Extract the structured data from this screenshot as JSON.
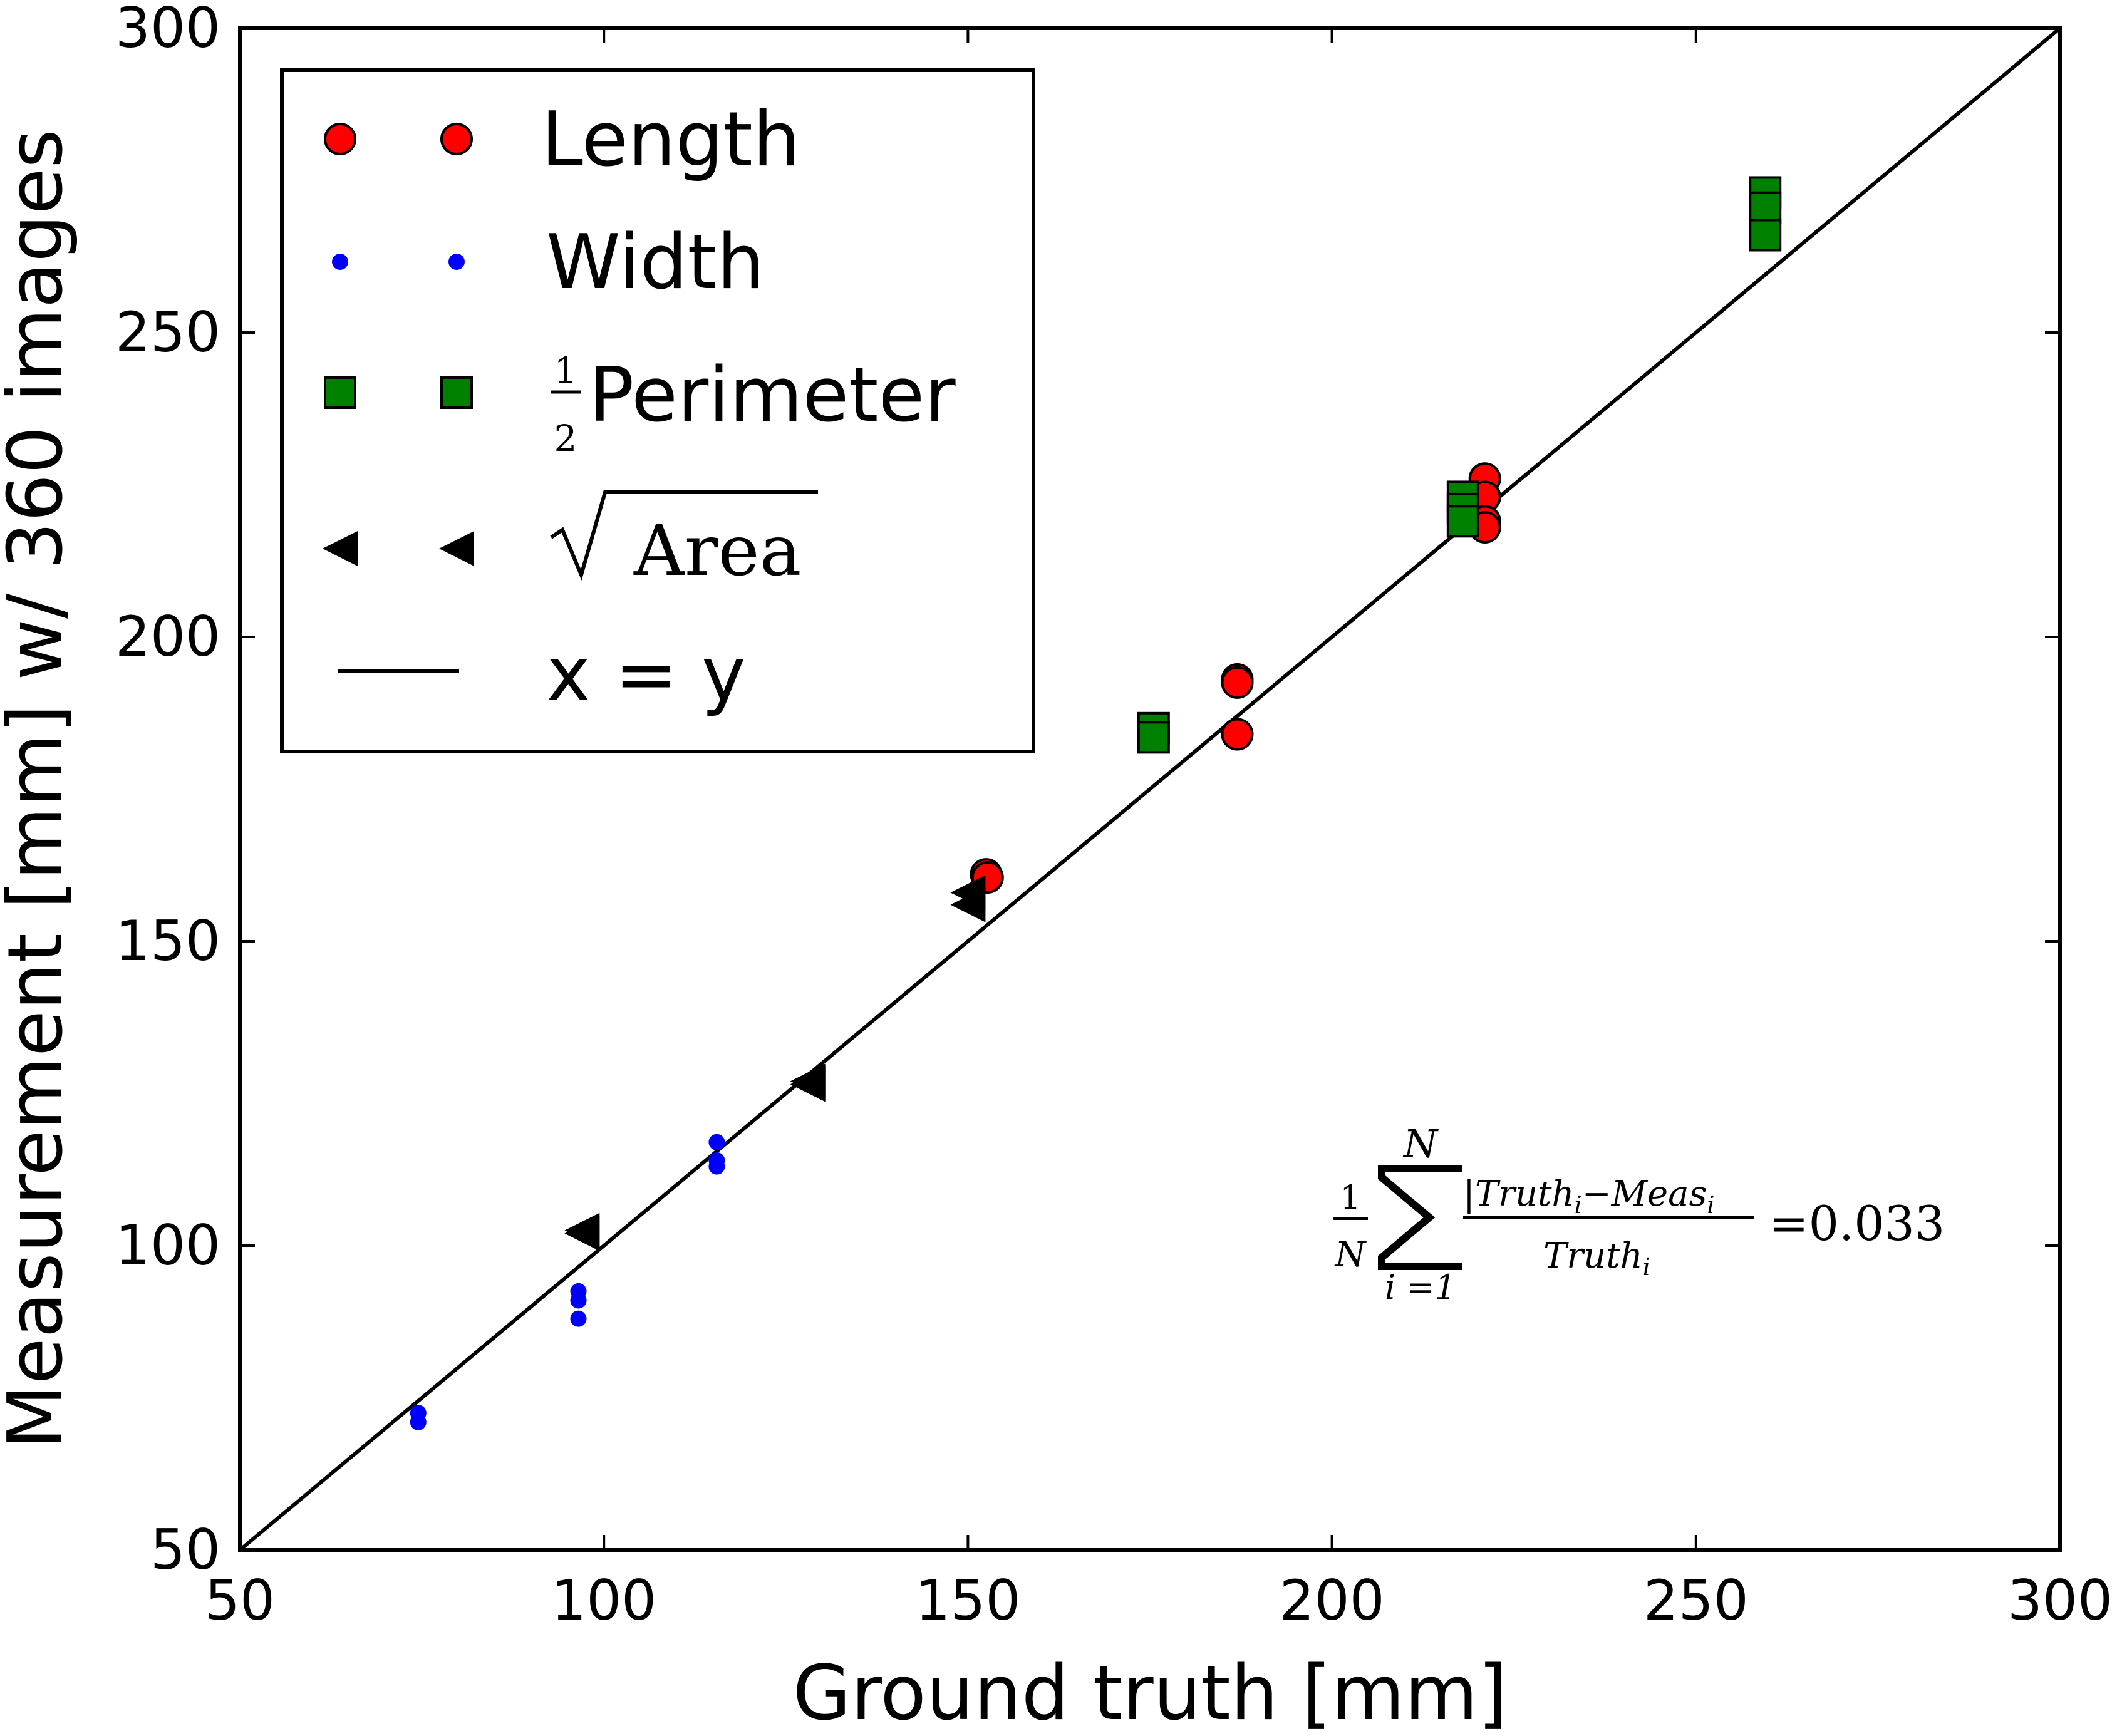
{
  "chart_data": {
    "type": "scatter",
    "title": "",
    "xlabel": "Ground truth [mm]",
    "ylabel": "Measurement [mm] w/ 360 images",
    "xlim": [
      50,
      300
    ],
    "ylim": [
      50,
      300
    ],
    "xticks": [
      50,
      100,
      150,
      200,
      250,
      300
    ],
    "yticks": [
      50,
      100,
      150,
      200,
      250,
      300
    ],
    "grid": false,
    "legend_position": "top-left",
    "series": [
      {
        "name": "Length",
        "marker": "circle",
        "color": "#ff0000",
        "points": [
          {
            "x": 152.5,
            "y": 161
          },
          {
            "x": 152.7,
            "y": 160.5
          },
          {
            "x": 187,
            "y": 193
          },
          {
            "x": 187,
            "y": 192.5
          },
          {
            "x": 187,
            "y": 184
          },
          {
            "x": 221,
            "y": 226
          },
          {
            "x": 221,
            "y": 223
          },
          {
            "x": 221,
            "y": 219
          },
          {
            "x": 221,
            "y": 218
          }
        ]
      },
      {
        "name": "Width",
        "marker": "dot",
        "color": "#0000ff",
        "points": [
          {
            "x": 74.5,
            "y": 72.5
          },
          {
            "x": 74.5,
            "y": 71
          },
          {
            "x": 96.5,
            "y": 92.5
          },
          {
            "x": 96.5,
            "y": 91
          },
          {
            "x": 96.5,
            "y": 88
          },
          {
            "x": 115.5,
            "y": 117
          },
          {
            "x": 115.5,
            "y": 114
          },
          {
            "x": 115.5,
            "y": 113
          }
        ]
      },
      {
        "name": "½Perimeter",
        "marker": "square",
        "color": "#008000",
        "points": [
          {
            "x": 175.5,
            "y": 185
          },
          {
            "x": 175.5,
            "y": 183.5
          },
          {
            "x": 218,
            "y": 223
          },
          {
            "x": 218,
            "y": 221
          },
          {
            "x": 218,
            "y": 219
          },
          {
            "x": 259.5,
            "y": 273
          },
          {
            "x": 259.5,
            "y": 270.5
          },
          {
            "x": 259.5,
            "y": 266
          }
        ]
      },
      {
        "name": "√Area",
        "marker": "triangle-left",
        "color": "#000000",
        "points": [
          {
            "x": 97,
            "y": 102.5
          },
          {
            "x": 97,
            "y": 102
          },
          {
            "x": 128,
            "y": 127
          },
          {
            "x": 128,
            "y": 126.5
          },
          {
            "x": 150,
            "y": 158
          },
          {
            "x": 150,
            "y": 156
          }
        ]
      },
      {
        "name": "x = y",
        "marker": "line",
        "color": "#000000",
        "points": [
          {
            "x": 50,
            "y": 50
          },
          {
            "x": 300,
            "y": 300
          }
        ]
      }
    ],
    "legend": {
      "length_label": "Length",
      "width_label": "Width",
      "perimeter_label": "Perimeter",
      "perimeter_fraction_num": "1",
      "perimeter_fraction_den": "2",
      "area_label": "Area",
      "line_label": "x = y"
    },
    "annotation": {
      "frac_num": "1",
      "frac_den": "N",
      "sum_upper": "N",
      "sum_lower": "i =1",
      "term_num": "|Truth",
      "term_num_sub": "i",
      "term_num_mid": "−Meas",
      "term_num_sub2": "i",
      "term_den": "Truth",
      "term_den_sub": "i",
      "result": "=0.033"
    }
  },
  "colors": {
    "length": "#ff0000",
    "width": "#0000ff",
    "perimeter": "#008000",
    "area": "#000000",
    "axes": "#000000"
  }
}
